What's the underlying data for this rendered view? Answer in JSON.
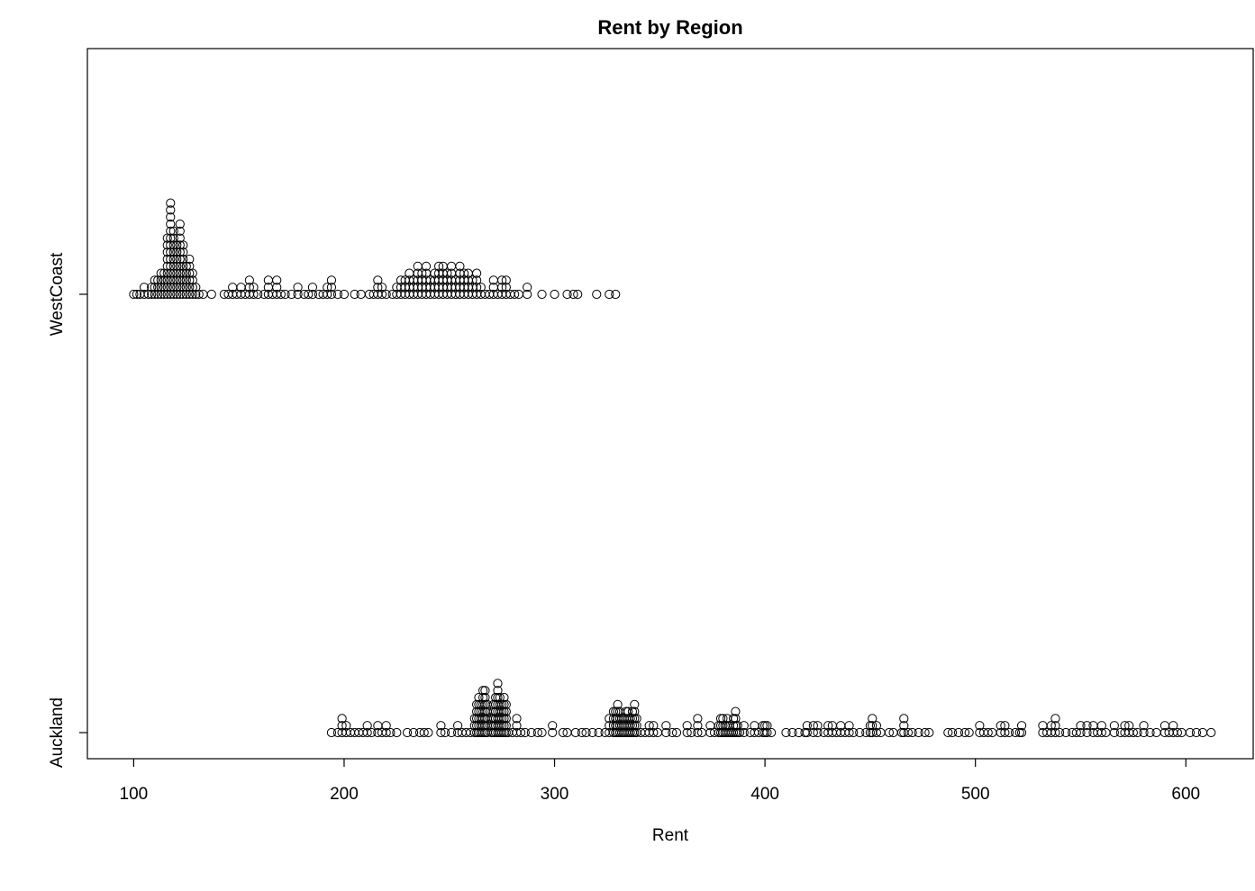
{
  "chart_data": {
    "type": "scatter",
    "subtype": "stacked dot plot",
    "title": "Rent by Region",
    "xlabel": "Rent",
    "ylabel": "",
    "xlim": [
      78,
      632
    ],
    "xticks": [
      100,
      200,
      300,
      400,
      500,
      600
    ],
    "categories": [
      "Auckland",
      "WestCoast"
    ],
    "marker": "open circle",
    "grid": false,
    "legend": "none",
    "colors": {
      "stroke": "#000000",
      "background": "#ffffff"
    },
    "series": [
      {
        "category": "WestCoast",
        "stacks": [
          [
            100,
            1
          ],
          [
            101.5,
            1
          ],
          [
            103,
            1
          ],
          [
            105,
            2
          ],
          [
            107,
            1
          ],
          [
            108.5,
            2
          ],
          [
            110,
            3
          ],
          [
            111.5,
            3
          ],
          [
            113,
            4
          ],
          [
            114.5,
            4
          ],
          [
            116,
            9
          ],
          [
            117.5,
            14
          ],
          [
            119,
            10
          ],
          [
            120.5,
            8
          ],
          [
            122,
            11
          ],
          [
            123.5,
            8
          ],
          [
            125,
            5
          ],
          [
            126.5,
            6
          ],
          [
            128,
            4
          ],
          [
            129.5,
            2
          ],
          [
            131,
            1
          ],
          [
            133,
            1
          ],
          [
            137,
            1
          ],
          [
            143,
            1
          ],
          [
            145,
            1
          ],
          [
            147,
            2
          ],
          [
            149,
            1
          ],
          [
            151,
            2
          ],
          [
            153,
            1
          ],
          [
            155,
            3
          ],
          [
            157,
            2
          ],
          [
            159,
            1
          ],
          [
            162,
            1
          ],
          [
            164,
            3
          ],
          [
            166,
            1
          ],
          [
            168,
            3
          ],
          [
            170,
            1
          ],
          [
            172,
            1
          ],
          [
            175,
            1
          ],
          [
            178,
            2
          ],
          [
            181,
            1
          ],
          [
            183,
            1
          ],
          [
            185,
            2
          ],
          [
            188,
            1
          ],
          [
            190,
            1
          ],
          [
            192,
            2
          ],
          [
            194,
            3
          ],
          [
            197,
            1
          ],
          [
            200,
            1
          ],
          [
            205,
            1
          ],
          [
            208,
            1
          ],
          [
            212,
            1
          ],
          [
            214,
            1
          ],
          [
            216,
            3
          ],
          [
            218,
            2
          ],
          [
            220,
            1
          ],
          [
            223,
            1
          ],
          [
            225,
            2
          ],
          [
            227,
            3
          ],
          [
            229,
            3
          ],
          [
            231,
            4
          ],
          [
            233,
            3
          ],
          [
            235,
            5
          ],
          [
            237,
            4
          ],
          [
            239,
            5
          ],
          [
            241,
            3
          ],
          [
            243,
            4
          ],
          [
            245,
            5
          ],
          [
            247,
            5
          ],
          [
            249,
            4
          ],
          [
            251,
            5
          ],
          [
            253,
            3
          ],
          [
            255,
            5
          ],
          [
            257,
            4
          ],
          [
            259,
            4
          ],
          [
            261,
            3
          ],
          [
            263,
            4
          ],
          [
            265,
            2
          ],
          [
            267,
            1
          ],
          [
            269,
            1
          ],
          [
            271,
            3
          ],
          [
            273,
            1
          ],
          [
            275,
            3
          ],
          [
            277,
            3
          ],
          [
            279,
            1
          ],
          [
            281,
            1
          ],
          [
            283,
            1
          ],
          [
            287,
            2
          ],
          [
            294,
            1
          ],
          [
            300,
            1
          ],
          [
            306,
            1
          ],
          [
            309,
            1
          ],
          [
            311,
            1
          ],
          [
            320,
            1
          ],
          [
            326,
            1
          ],
          [
            329,
            1
          ]
        ]
      },
      {
        "category": "Auckland",
        "stacks": [
          [
            194,
            1
          ],
          [
            197,
            1
          ],
          [
            199,
            3
          ],
          [
            201,
            2
          ],
          [
            203,
            1
          ],
          [
            205,
            1
          ],
          [
            207,
            1
          ],
          [
            209,
            1
          ],
          [
            211,
            2
          ],
          [
            213,
            1
          ],
          [
            216,
            2
          ],
          [
            218,
            1
          ],
          [
            220,
            2
          ],
          [
            222,
            1
          ],
          [
            225,
            1
          ],
          [
            230,
            1
          ],
          [
            233,
            1
          ],
          [
            236,
            1
          ],
          [
            238,
            1
          ],
          [
            240,
            1
          ],
          [
            246,
            2
          ],
          [
            248,
            1
          ],
          [
            251,
            1
          ],
          [
            254,
            2
          ],
          [
            256,
            1
          ],
          [
            258,
            1
          ],
          [
            260,
            1
          ],
          [
            262,
            3
          ],
          [
            263,
            5
          ],
          [
            264,
            6
          ],
          [
            265,
            5
          ],
          [
            266,
            7
          ],
          [
            267,
            7
          ],
          [
            268,
            5
          ],
          [
            270,
            3
          ],
          [
            271,
            5
          ],
          [
            272,
            6
          ],
          [
            273,
            8
          ],
          [
            274,
            6
          ],
          [
            275,
            5
          ],
          [
            276,
            6
          ],
          [
            277,
            5
          ],
          [
            278,
            1
          ],
          [
            280,
            1
          ],
          [
            282,
            3
          ],
          [
            284,
            1
          ],
          [
            286,
            1
          ],
          [
            289,
            1
          ],
          [
            292,
            1
          ],
          [
            294,
            1
          ],
          [
            299,
            2
          ],
          [
            304,
            1
          ],
          [
            306,
            1
          ],
          [
            310,
            1
          ],
          [
            313,
            1
          ],
          [
            315,
            1
          ],
          [
            318,
            1
          ],
          [
            321,
            1
          ],
          [
            324,
            1
          ],
          [
            326,
            3
          ],
          [
            328,
            4
          ],
          [
            329,
            4
          ],
          [
            330,
            5
          ],
          [
            331,
            4
          ],
          [
            332,
            3
          ],
          [
            333,
            3
          ],
          [
            334,
            4
          ],
          [
            335,
            4
          ],
          [
            336,
            3
          ],
          [
            337,
            4
          ],
          [
            338,
            5
          ],
          [
            339,
            3
          ],
          [
            341,
            1
          ],
          [
            343,
            1
          ],
          [
            345,
            2
          ],
          [
            347,
            2
          ],
          [
            349,
            1
          ],
          [
            353,
            2
          ],
          [
            356,
            1
          ],
          [
            358,
            1
          ],
          [
            363,
            2
          ],
          [
            365,
            1
          ],
          [
            368,
            3
          ],
          [
            370,
            1
          ],
          [
            374,
            2
          ],
          [
            376,
            1
          ],
          [
            378,
            2
          ],
          [
            379,
            3
          ],
          [
            380,
            3
          ],
          [
            381,
            2
          ],
          [
            382,
            3
          ],
          [
            383,
            2
          ],
          [
            384,
            1
          ],
          [
            385,
            3
          ],
          [
            386,
            4
          ],
          [
            387,
            2
          ],
          [
            388,
            1
          ],
          [
            390,
            2
          ],
          [
            393,
            1
          ],
          [
            395,
            2
          ],
          [
            397,
            1
          ],
          [
            399,
            2
          ],
          [
            400,
            2
          ],
          [
            401,
            2
          ],
          [
            403,
            1
          ],
          [
            410,
            1
          ],
          [
            413,
            1
          ],
          [
            416,
            1
          ],
          [
            419,
            1
          ],
          [
            420,
            2
          ],
          [
            423,
            2
          ],
          [
            425,
            2
          ],
          [
            428,
            1
          ],
          [
            430,
            2
          ],
          [
            432,
            2
          ],
          [
            434,
            1
          ],
          [
            436,
            2
          ],
          [
            438,
            1
          ],
          [
            440,
            2
          ],
          [
            442,
            1
          ],
          [
            445,
            1
          ],
          [
            448,
            1
          ],
          [
            450,
            2
          ],
          [
            451,
            3
          ],
          [
            453,
            2
          ],
          [
            455,
            1
          ],
          [
            459,
            1
          ],
          [
            461,
            1
          ],
          [
            465,
            1
          ],
          [
            466,
            3
          ],
          [
            468,
            1
          ],
          [
            470,
            1
          ],
          [
            473,
            1
          ],
          [
            476,
            1
          ],
          [
            478,
            1
          ],
          [
            487,
            1
          ],
          [
            489,
            1
          ],
          [
            492,
            1
          ],
          [
            495,
            1
          ],
          [
            497,
            1
          ],
          [
            502,
            2
          ],
          [
            504,
            1
          ],
          [
            506,
            1
          ],
          [
            508,
            1
          ],
          [
            512,
            2
          ],
          [
            514,
            2
          ],
          [
            516,
            1
          ],
          [
            519,
            1
          ],
          [
            521,
            1
          ],
          [
            522,
            2
          ],
          [
            532,
            2
          ],
          [
            534,
            1
          ],
          [
            536,
            2
          ],
          [
            538,
            3
          ],
          [
            540,
            1
          ],
          [
            543,
            1
          ],
          [
            546,
            1
          ],
          [
            548,
            1
          ],
          [
            550,
            2
          ],
          [
            553,
            2
          ],
          [
            556,
            2
          ],
          [
            558,
            1
          ],
          [
            560,
            2
          ],
          [
            562,
            1
          ],
          [
            566,
            2
          ],
          [
            569,
            1
          ],
          [
            571,
            2
          ],
          [
            573,
            2
          ],
          [
            575,
            1
          ],
          [
            577,
            1
          ],
          [
            580,
            2
          ],
          [
            583,
            1
          ],
          [
            586,
            1
          ],
          [
            590,
            2
          ],
          [
            592,
            1
          ],
          [
            594,
            2
          ],
          [
            596,
            1
          ],
          [
            598,
            1
          ],
          [
            602,
            1
          ],
          [
            605,
            1
          ],
          [
            608,
            1
          ],
          [
            612,
            1
          ]
        ]
      }
    ]
  }
}
